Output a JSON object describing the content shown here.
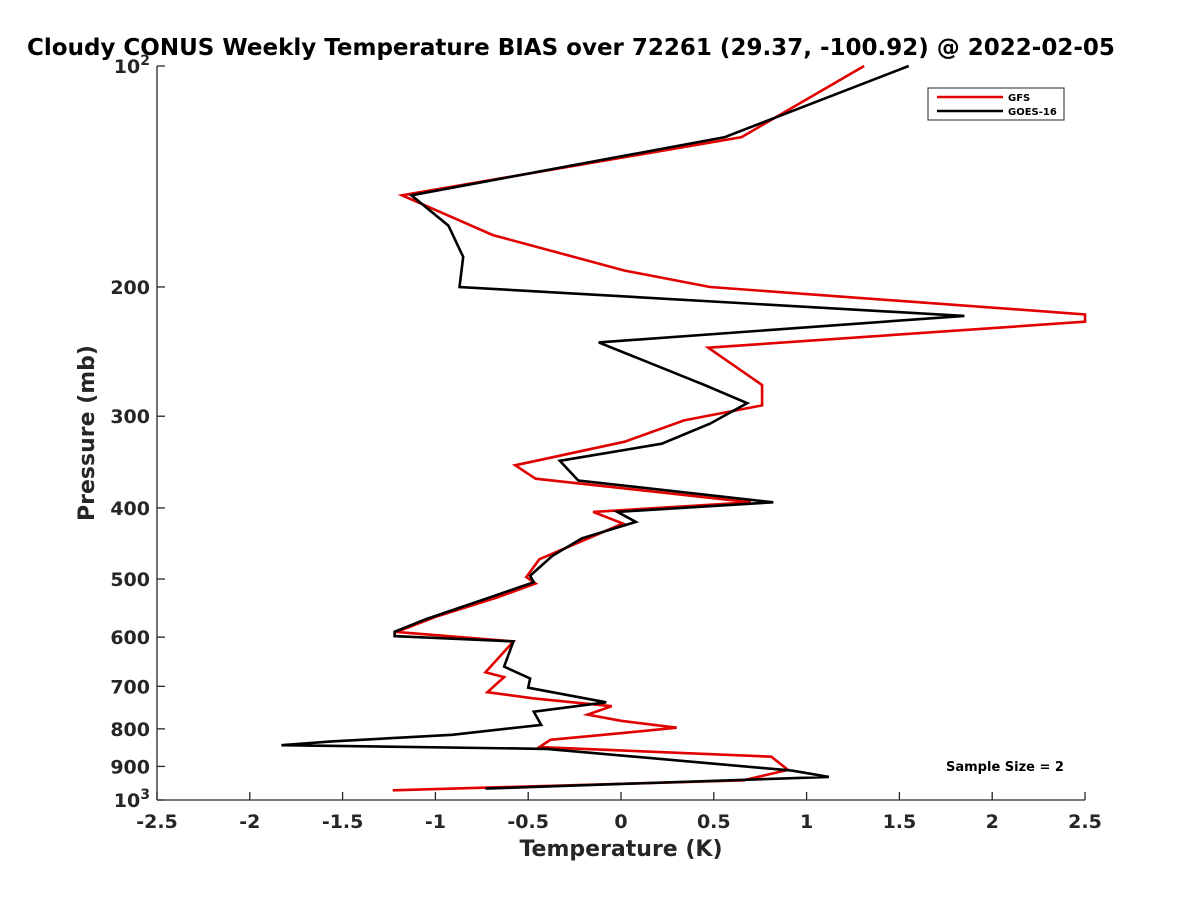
{
  "chart_data": {
    "type": "line",
    "title": "Cloudy CONUS Weekly Temperature BIAS over 72261 (29.37, -100.92) @ 2022-02-05",
    "xlabel": "Temperature (K)",
    "ylabel": "Pressure (mb)",
    "xlim": [
      -2.5,
      2.5
    ],
    "ylim": [
      100,
      1000
    ],
    "y_scale": "log",
    "y_reversed": true,
    "grid": false,
    "legend_position": "top-right",
    "x_ticks": [
      "-2.5",
      "-2",
      "-1.5",
      "-1",
      "-0.5",
      "0",
      "0.5",
      "1",
      "1.5",
      "2",
      "2.5"
    ],
    "y_ticks": [
      {
        "value": 100,
        "label": "10",
        "sup": "2"
      },
      {
        "value": 200,
        "label": "200",
        "sup": ""
      },
      {
        "value": 300,
        "label": "300",
        "sup": ""
      },
      {
        "value": 400,
        "label": "400",
        "sup": ""
      },
      {
        "value": 500,
        "label": "500",
        "sup": ""
      },
      {
        "value": 600,
        "label": "600",
        "sup": ""
      },
      {
        "value": 700,
        "label": "700",
        "sup": ""
      },
      {
        "value": 800,
        "label": "800",
        "sup": ""
      },
      {
        "value": 900,
        "label": "900",
        "sup": ""
      },
      {
        "value": 1000,
        "label": "10",
        "sup": "3"
      }
    ],
    "annotation": "Sample Size = 2",
    "series": [
      {
        "name": "GFS",
        "color": "#e00000",
        "points": [
          [
            1.31,
            100
          ],
          [
            0.65,
            125
          ],
          [
            -1.18,
            150
          ],
          [
            -0.69,
            170
          ],
          [
            0.02,
            190
          ],
          [
            0.48,
            200
          ],
          [
            2.5,
            218
          ],
          [
            2.5,
            223
          ],
          [
            0.47,
            242
          ],
          [
            0.76,
            272
          ],
          [
            0.76,
            290
          ],
          [
            0.34,
            304
          ],
          [
            0.02,
            325
          ],
          [
            -0.57,
            350
          ],
          [
            -0.46,
            365
          ],
          [
            0.7,
            393
          ],
          [
            -0.15,
            405
          ],
          [
            0.01,
            420
          ],
          [
            -0.44,
            470
          ],
          [
            -0.51,
            497
          ],
          [
            -0.46,
            507
          ],
          [
            -0.67,
            530
          ],
          [
            -1.0,
            563
          ],
          [
            -1.17,
            585
          ],
          [
            -1.22,
            590
          ],
          [
            -0.58,
            608
          ],
          [
            -0.73,
            670
          ],
          [
            -0.63,
            680
          ],
          [
            -0.72,
            713
          ],
          [
            -0.47,
            727
          ],
          [
            -0.05,
            745
          ],
          [
            -0.18,
            765
          ],
          [
            0.0,
            780
          ],
          [
            0.3,
            797
          ],
          [
            0.02,
            810
          ],
          [
            -0.38,
            828
          ],
          [
            -0.44,
            847
          ],
          [
            0.81,
            873
          ],
          [
            0.9,
            910
          ],
          [
            0.66,
            940
          ],
          [
            -1.23,
            970
          ]
        ]
      },
      {
        "name": "GOES-16",
        "color": "#000000",
        "points": [
          [
            1.55,
            100
          ],
          [
            0.56,
            125
          ],
          [
            -1.13,
            150
          ],
          [
            -0.93,
            165
          ],
          [
            -0.85,
            182
          ],
          [
            -0.87,
            200
          ],
          [
            1.85,
            219
          ],
          [
            -0.12,
            238
          ],
          [
            0.45,
            272
          ],
          [
            0.68,
            288
          ],
          [
            0.48,
            307
          ],
          [
            0.22,
            327
          ],
          [
            -0.33,
            345
          ],
          [
            -0.23,
            367
          ],
          [
            0.82,
            393
          ],
          [
            -0.02,
            405
          ],
          [
            0.08,
            418
          ],
          [
            -0.21,
            440
          ],
          [
            -0.37,
            465
          ],
          [
            -0.49,
            495
          ],
          [
            -0.47,
            505
          ],
          [
            -0.69,
            528
          ],
          [
            -1.05,
            567
          ],
          [
            -1.22,
            590
          ],
          [
            -1.22,
            598
          ],
          [
            -0.58,
            608
          ],
          [
            -0.63,
            658
          ],
          [
            -0.49,
            683
          ],
          [
            -0.5,
            703
          ],
          [
            -0.08,
            736
          ],
          [
            -0.47,
            758
          ],
          [
            -0.43,
            790
          ],
          [
            -0.91,
            815
          ],
          [
            -1.56,
            832
          ],
          [
            -1.83,
            842
          ],
          [
            -0.4,
            852
          ],
          [
            0.92,
            912
          ],
          [
            1.12,
            930
          ],
          [
            -0.73,
            965
          ]
        ]
      }
    ]
  }
}
